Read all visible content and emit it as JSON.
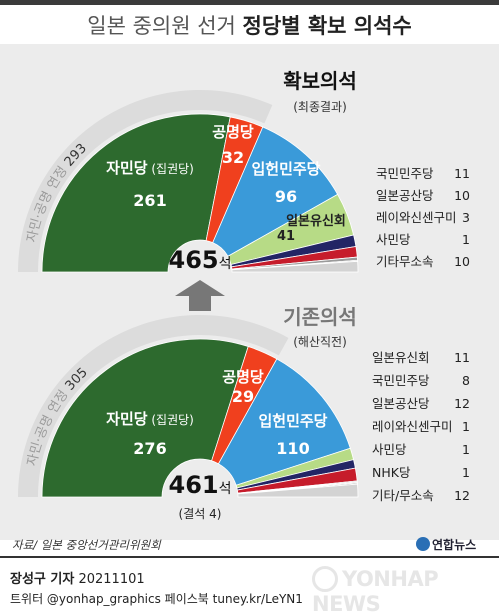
{
  "title": {
    "light": "일본 중의원 선거",
    "bold": "정당별 확보 의석수"
  },
  "colors": {
    "ldp": "#2d6a2e",
    "komeito": "#f0401e",
    "cdp": "#3a9ad9",
    "ishin": "#b7db86",
    "navy": "#232565",
    "crimson": "#c61c2b",
    "grey": "#9a9a9a",
    "lightgrey": "#cfcfcf",
    "arc": "#dcdcdc",
    "arc_text": "#9b9b9b",
    "label_text": "#ffffff"
  },
  "chart_data": [
    {
      "type": "pie",
      "title": "확보의석",
      "subtitle": "(최종결과)",
      "total": 465,
      "total_unit": "석",
      "coalition_label": "자민·공명 연정",
      "coalition_value": 293,
      "slices": [
        {
          "name": "자민당",
          "sub": "(집권당)",
          "value": 261,
          "color": "#2d6a2e"
        },
        {
          "name": "공명당",
          "value": 32,
          "color": "#f0401e"
        },
        {
          "name": "입헌민주당",
          "value": 96,
          "color": "#3a9ad9"
        },
        {
          "name": "일본유신회",
          "value": 41,
          "color": "#b7db86"
        },
        {
          "name": "국민민주당",
          "value": 11,
          "color": "#232565"
        },
        {
          "name": "일본공산당",
          "value": 10,
          "color": "#c61c2b"
        },
        {
          "name": "레이와신센구미",
          "value": 3,
          "color": "#9a9a9a"
        },
        {
          "name": "사민당",
          "value": 1,
          "color": "#bdbdbd"
        },
        {
          "name": "기타무소속",
          "value": 10,
          "color": "#d3d3d3"
        }
      ],
      "legend": [
        {
          "name": "국민민주당",
          "value": "11"
        },
        {
          "name": "일본공산당",
          "value": "10"
        },
        {
          "name": "레이와신센구미",
          "value": "3"
        },
        {
          "name": "사민당",
          "value": "1"
        },
        {
          "name": "기타무소속",
          "value": "10"
        }
      ]
    },
    {
      "type": "pie",
      "title": "기존의석",
      "subtitle": "(해산직전)",
      "total": 461,
      "total_unit": "석",
      "total_note": "(결석 4)",
      "coalition_label": "자민·공명 연정",
      "coalition_value": 305,
      "slices": [
        {
          "name": "자민당",
          "sub": "(집권당)",
          "value": 276,
          "color": "#2d6a2e"
        },
        {
          "name": "공명당",
          "value": 29,
          "color": "#f0401e"
        },
        {
          "name": "입헌민주당",
          "value": 110,
          "color": "#3a9ad9"
        },
        {
          "name": "일본유신회",
          "value": 11,
          "color": "#b7db86"
        },
        {
          "name": "국민민주당",
          "value": 8,
          "color": "#232565"
        },
        {
          "name": "일본공산당",
          "value": 12,
          "color": "#c61c2b"
        },
        {
          "name": "레이와신센구미",
          "value": 1,
          "color": "#9a9a9a"
        },
        {
          "name": "사민당",
          "value": 1,
          "color": "#bdbdbd"
        },
        {
          "name": "NHK당",
          "value": 1,
          "color": "#8a8a8a"
        },
        {
          "name": "기타/무소속",
          "value": 12,
          "color": "#d3d3d3"
        }
      ],
      "legend": [
        {
          "name": "일본유신회",
          "value": "11"
        },
        {
          "name": "국민민주당",
          "value": "8"
        },
        {
          "name": "일본공산당",
          "value": "12"
        },
        {
          "name": "레이와신센구미",
          "value": "1"
        },
        {
          "name": "사민당",
          "value": "1"
        },
        {
          "name": "NHK당",
          "value": "1"
        },
        {
          "name": "기타/무소속",
          "value": "12"
        }
      ]
    }
  ],
  "source": "자료/ 일본 중앙선거관리위원회",
  "logo_small": "연합뉴스",
  "byline": {
    "author": "장성구 기자",
    "date": "20211101"
  },
  "social": "트위터 @yonhap_graphics  페이스북 tuney.kr/LeYN1",
  "yonhap": "YONHAP NEWS"
}
